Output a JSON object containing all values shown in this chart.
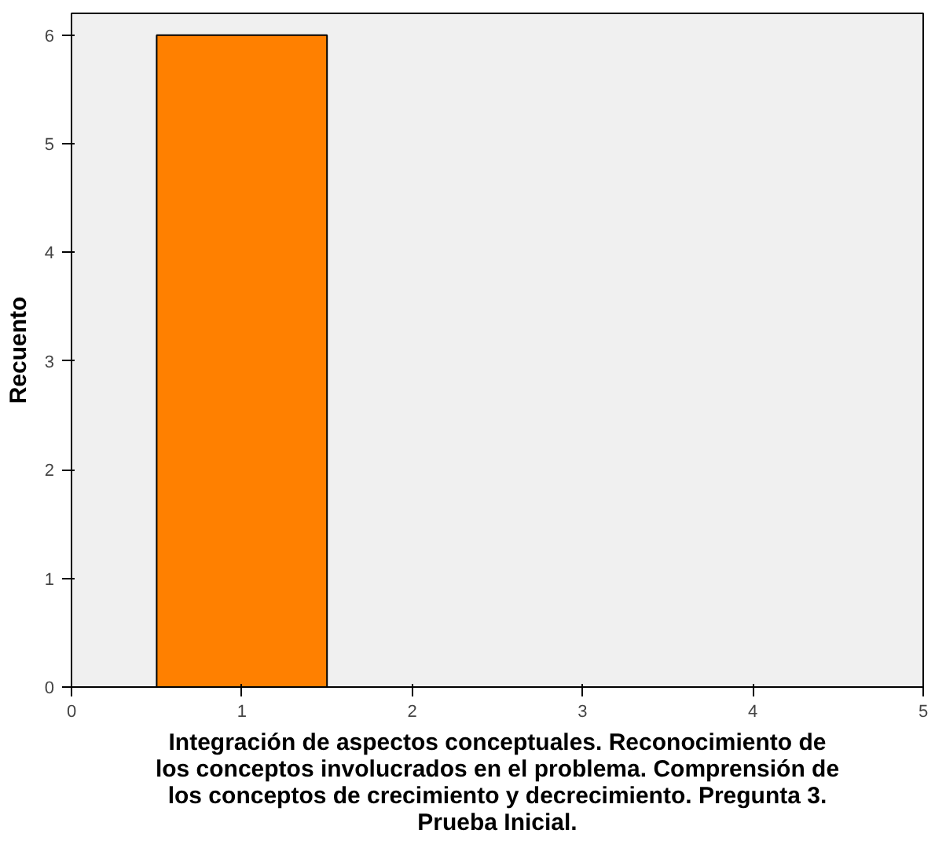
{
  "chart_data": {
    "type": "histogram",
    "xlabel": "Integración de aspectos conceptuales. Reconocimiento de los conceptos involucrados en el problema. Comprensión de los conceptos de crecimiento y decrecimiento. Pregunta 3. Prueba Inicial.",
    "ylabel": "Recuento",
    "bins": [
      0.5,
      1.5
    ],
    "values": [
      6
    ],
    "color": "#ff8000",
    "xlim": [
      0,
      5
    ],
    "xticks": [
      0,
      1,
      2,
      3,
      4,
      5
    ],
    "ylim": [
      0,
      6.2
    ],
    "yticks": [
      0,
      1,
      2,
      3,
      4,
      5,
      6
    ],
    "grid": false
  }
}
